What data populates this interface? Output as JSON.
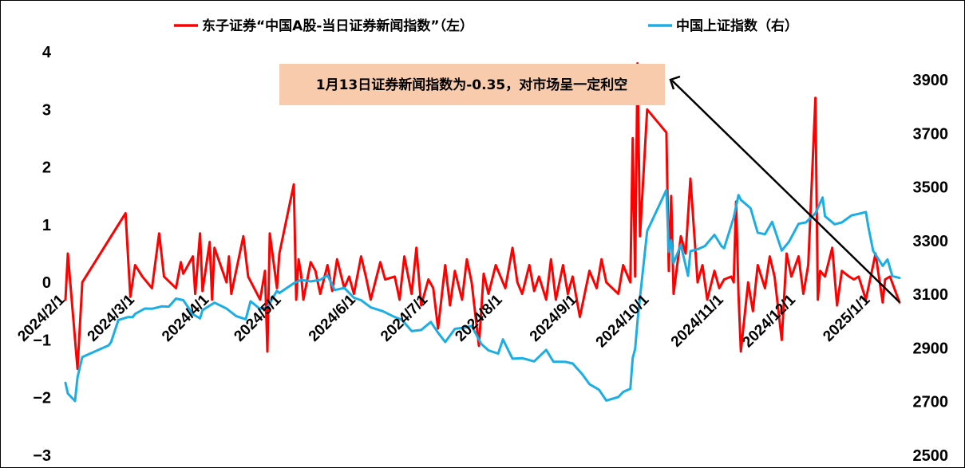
{
  "chart_data": {
    "type": "line",
    "legend_position": "top",
    "x_tick_labels": [
      "2024/2/1",
      "2024/3/1",
      "2024/4/1",
      "2024/5/1",
      "2024/6/1",
      "2024/7/1",
      "2024/8/1",
      "2024/9/1",
      "2024/10/1",
      "2024/11/1",
      "2024/12/1",
      "2025/1/1"
    ],
    "y_left": {
      "ylim": [
        -3,
        4
      ],
      "ticks": [
        "4",
        "3",
        "2",
        "1",
        "0",
        "−1",
        "−2",
        "−3"
      ]
    },
    "y_right": {
      "ylim": [
        2500,
        3900
      ],
      "ticks": [
        "3900",
        "3700",
        "3500",
        "3300",
        "3100",
        "2900",
        "2700",
        "2500"
      ]
    },
    "annotation": "1月13日证券新闻指数为-0.35，对市场呈一定利空",
    "series": [
      {
        "name": "东子证券“中国A股-当日证券新闻指数”（左）",
        "axis": "left",
        "color": "#ff0000",
        "points": [
          [
            "2024-02-01",
            -0.3
          ],
          [
            "2024-02-02",
            0.5
          ],
          [
            "2024-02-06",
            -1.5
          ],
          [
            "2024-02-08",
            0.0
          ],
          [
            "2024-02-26",
            1.2
          ],
          [
            "2024-02-28",
            -0.25
          ],
          [
            "2024-03-01",
            0.3
          ],
          [
            "2024-03-04",
            0.1
          ],
          [
            "2024-03-08",
            -0.1
          ],
          [
            "2024-03-11",
            0.85
          ],
          [
            "2024-03-13",
            0.1
          ],
          [
            "2024-03-18",
            -0.1
          ],
          [
            "2024-03-20",
            0.35
          ],
          [
            "2024-03-21",
            0.15
          ],
          [
            "2024-03-25",
            0.45
          ],
          [
            "2024-03-26",
            -0.2
          ],
          [
            "2024-03-28",
            0.85
          ],
          [
            "2024-03-29",
            -0.15
          ],
          [
            "2024-04-01",
            0.7
          ],
          [
            "2024-04-02",
            -0.3
          ],
          [
            "2024-04-03",
            0.6
          ],
          [
            "2024-04-08",
            0.0
          ],
          [
            "2024-04-09",
            0.45
          ],
          [
            "2024-04-10",
            -0.2
          ],
          [
            "2024-04-15",
            0.8
          ],
          [
            "2024-04-17",
            0.1
          ],
          [
            "2024-04-22",
            -0.3
          ],
          [
            "2024-04-24",
            0.2
          ],
          [
            "2024-04-25",
            -1.2
          ],
          [
            "2024-04-26",
            0.85
          ],
          [
            "2024-04-29",
            -0.1
          ],
          [
            "2024-04-30",
            0.5
          ],
          [
            "2024-05-06",
            1.7
          ],
          [
            "2024-05-07",
            -0.3
          ],
          [
            "2024-05-08",
            0.4
          ],
          [
            "2024-05-09",
            0.15
          ],
          [
            "2024-05-10",
            -0.3
          ],
          [
            "2024-05-13",
            0.35
          ],
          [
            "2024-05-15",
            0.2
          ],
          [
            "2024-05-17",
            -0.2
          ],
          [
            "2024-05-20",
            0.3
          ],
          [
            "2024-05-22",
            -0.15
          ],
          [
            "2024-05-24",
            0.4
          ],
          [
            "2024-05-27",
            -0.1
          ],
          [
            "2024-05-29",
            0.1
          ],
          [
            "2024-05-31",
            -0.2
          ],
          [
            "2024-06-03",
            0.45
          ],
          [
            "2024-06-05",
            0.1
          ],
          [
            "2024-06-07",
            -0.3
          ],
          [
            "2024-06-11",
            0.35
          ],
          [
            "2024-06-13",
            0.05
          ],
          [
            "2024-06-17",
            0.1
          ],
          [
            "2024-06-19",
            -0.3
          ],
          [
            "2024-06-21",
            0.45
          ],
          [
            "2024-06-24",
            -0.2
          ],
          [
            "2024-06-26",
            0.6
          ],
          [
            "2024-06-28",
            -0.4
          ],
          [
            "2024-07-01",
            0.05
          ],
          [
            "2024-07-03",
            -0.1
          ],
          [
            "2024-07-05",
            -0.8
          ],
          [
            "2024-07-08",
            0.3
          ],
          [
            "2024-07-10",
            -0.4
          ],
          [
            "2024-07-12",
            0.2
          ],
          [
            "2024-07-15",
            -0.3
          ],
          [
            "2024-07-17",
            0.4
          ],
          [
            "2024-07-19",
            0.0
          ],
          [
            "2024-07-22",
            -1.1
          ],
          [
            "2024-07-24",
            0.15
          ],
          [
            "2024-07-26",
            -0.2
          ],
          [
            "2024-07-29",
            0.3
          ],
          [
            "2024-07-31",
            0.1
          ],
          [
            "2024-08-02",
            -0.1
          ],
          [
            "2024-08-05",
            0.6
          ],
          [
            "2024-08-07",
            0.0
          ],
          [
            "2024-08-09",
            -0.2
          ],
          [
            "2024-08-12",
            0.3
          ],
          [
            "2024-08-14",
            -0.15
          ],
          [
            "2024-08-16",
            0.1
          ],
          [
            "2024-08-19",
            -0.3
          ],
          [
            "2024-08-21",
            0.4
          ],
          [
            "2024-08-23",
            -0.3
          ],
          [
            "2024-08-26",
            0.3
          ],
          [
            "2024-08-28",
            -0.2
          ],
          [
            "2024-08-30",
            0.1
          ],
          [
            "2024-09-02",
            -0.6
          ],
          [
            "2024-09-04",
            -0.2
          ],
          [
            "2024-09-06",
            0.2
          ],
          [
            "2024-09-09",
            -0.1
          ],
          [
            "2024-09-11",
            0.4
          ],
          [
            "2024-09-13",
            0.0
          ],
          [
            "2024-09-18",
            -0.2
          ],
          [
            "2024-09-20",
            0.3
          ],
          [
            "2024-09-23",
            0.0
          ],
          [
            "2024-09-24",
            2.5
          ],
          [
            "2024-09-25",
            0.1
          ],
          [
            "2024-09-26",
            3.8
          ],
          [
            "2024-09-27",
            0.8
          ],
          [
            "2024-09-30",
            3.0
          ],
          [
            "2024-10-08",
            2.6
          ],
          [
            "2024-10-09",
            0.2
          ],
          [
            "2024-10-10",
            1.5
          ],
          [
            "2024-10-11",
            -0.2
          ],
          [
            "2024-10-14",
            0.8
          ],
          [
            "2024-10-16",
            0.5
          ],
          [
            "2024-10-18",
            1.8
          ],
          [
            "2024-10-21",
            0.0
          ],
          [
            "2024-10-23",
            0.3
          ],
          [
            "2024-10-25",
            -0.3
          ],
          [
            "2024-10-28",
            0.2
          ],
          [
            "2024-10-30",
            -0.1
          ],
          [
            "2024-11-01",
            0.05
          ],
          [
            "2024-11-04",
            0.1
          ],
          [
            "2024-11-05",
            0.0
          ],
          [
            "2024-11-06",
            1.4
          ],
          [
            "2024-11-07",
            -0.2
          ],
          [
            "2024-11-08",
            -1.2
          ],
          [
            "2024-11-11",
            0.0
          ],
          [
            "2024-11-13",
            -0.5
          ],
          [
            "2024-11-15",
            0.3
          ],
          [
            "2024-11-18",
            -0.1
          ],
          [
            "2024-11-20",
            0.45
          ],
          [
            "2024-11-22",
            0.1
          ],
          [
            "2024-11-25",
            -1.0
          ],
          [
            "2024-11-27",
            0.5
          ],
          [
            "2024-11-29",
            0.1
          ],
          [
            "2024-12-02",
            0.45
          ],
          [
            "2024-12-04",
            -0.2
          ],
          [
            "2024-12-06",
            0.3
          ],
          [
            "2024-12-09",
            3.2
          ],
          [
            "2024-12-10",
            -0.3
          ],
          [
            "2024-12-11",
            0.2
          ],
          [
            "2024-12-13",
            0.1
          ],
          [
            "2024-12-16",
            0.6
          ],
          [
            "2024-12-18",
            -0.4
          ],
          [
            "2024-12-20",
            0.2
          ],
          [
            "2024-12-23",
            0.1
          ],
          [
            "2024-12-25",
            0.05
          ],
          [
            "2024-12-27",
            0.1
          ],
          [
            "2024-12-30",
            -0.3
          ],
          [
            "2025-01-02",
            0.3
          ],
          [
            "2025-01-03",
            0.5
          ],
          [
            "2025-01-06",
            -0.35
          ],
          [
            "2025-01-07",
            0.05
          ],
          [
            "2025-01-09",
            0.1
          ],
          [
            "2025-01-13",
            -0.35
          ]
        ]
      },
      {
        "name": "中国上证指数（右）",
        "axis": "right",
        "color": "#1aaee5",
        "points": [
          [
            "2024-02-01",
            2770
          ],
          [
            "2024-02-02",
            2730
          ],
          [
            "2024-02-05",
            2702
          ],
          [
            "2024-02-06",
            2790
          ],
          [
            "2024-02-07",
            2829
          ],
          [
            "2024-02-08",
            2866
          ],
          [
            "2024-02-19",
            2910
          ],
          [
            "2024-02-20",
            2922
          ],
          [
            "2024-02-23",
            3004
          ],
          [
            "2024-02-27",
            3015
          ],
          [
            "2024-02-29",
            3015
          ],
          [
            "2024-03-01",
            3027
          ],
          [
            "2024-03-05",
            3047
          ],
          [
            "2024-03-08",
            3046
          ],
          [
            "2024-03-12",
            3055
          ],
          [
            "2024-03-15",
            3054
          ],
          [
            "2024-03-18",
            3084
          ],
          [
            "2024-03-21",
            3078
          ],
          [
            "2024-03-25",
            3026
          ],
          [
            "2024-03-28",
            3010
          ],
          [
            "2024-03-29",
            3041
          ],
          [
            "2024-04-03",
            3069
          ],
          [
            "2024-04-08",
            3047
          ],
          [
            "2024-04-12",
            3019
          ],
          [
            "2024-04-16",
            3007
          ],
          [
            "2024-04-18",
            3074
          ],
          [
            "2024-04-22",
            3045
          ],
          [
            "2024-04-25",
            3052
          ],
          [
            "2024-04-29",
            3113
          ],
          [
            "2024-04-30",
            3105
          ],
          [
            "2024-05-06",
            3141
          ],
          [
            "2024-05-09",
            3154
          ],
          [
            "2024-05-13",
            3148
          ],
          [
            "2024-05-17",
            3154
          ],
          [
            "2024-05-20",
            3171
          ],
          [
            "2024-05-23",
            3116
          ],
          [
            "2024-05-27",
            3124
          ],
          [
            "2024-05-31",
            3087
          ],
          [
            "2024-06-03",
            3078
          ],
          [
            "2024-06-07",
            3051
          ],
          [
            "2024-06-12",
            3037
          ],
          [
            "2024-06-17",
            3015
          ],
          [
            "2024-06-20",
            3005
          ],
          [
            "2024-06-24",
            2963
          ],
          [
            "2024-06-28",
            2967
          ],
          [
            "2024-07-02",
            2997
          ],
          [
            "2024-07-05",
            2957
          ],
          [
            "2024-07-08",
            2922
          ],
          [
            "2024-07-12",
            2971
          ],
          [
            "2024-07-16",
            2976
          ],
          [
            "2024-07-19",
            2982
          ],
          [
            "2024-07-23",
            2915
          ],
          [
            "2024-07-26",
            2891
          ],
          [
            "2024-07-30",
            2879
          ],
          [
            "2024-08-01",
            2932
          ],
          [
            "2024-08-05",
            2860
          ],
          [
            "2024-08-09",
            2862
          ],
          [
            "2024-08-14",
            2850
          ],
          [
            "2024-08-19",
            2893
          ],
          [
            "2024-08-22",
            2849
          ],
          [
            "2024-08-27",
            2848
          ],
          [
            "2024-08-30",
            2842
          ],
          [
            "2024-09-03",
            2802
          ],
          [
            "2024-09-06",
            2765
          ],
          [
            "2024-09-10",
            2744
          ],
          [
            "2024-09-13",
            2704
          ],
          [
            "2024-09-18",
            2717
          ],
          [
            "2024-09-20",
            2736
          ],
          [
            "2024-09-23",
            2748
          ],
          [
            "2024-09-24",
            2863
          ],
          [
            "2024-09-25",
            2896
          ],
          [
            "2024-09-26",
            3000
          ],
          [
            "2024-09-27",
            3087
          ],
          [
            "2024-09-30",
            3336
          ],
          [
            "2024-10-08",
            3489
          ],
          [
            "2024-10-09",
            3258
          ],
          [
            "2024-10-10",
            3301
          ],
          [
            "2024-10-11",
            3217
          ],
          [
            "2024-10-14",
            3284
          ],
          [
            "2024-10-17",
            3169
          ],
          [
            "2024-10-18",
            3261
          ],
          [
            "2024-10-21",
            3268
          ],
          [
            "2024-10-24",
            3280
          ],
          [
            "2024-10-28",
            3322
          ],
          [
            "2024-10-31",
            3279
          ],
          [
            "2024-11-01",
            3272
          ],
          [
            "2024-11-05",
            3386
          ],
          [
            "2024-11-07",
            3470
          ],
          [
            "2024-11-08",
            3452
          ],
          [
            "2024-11-12",
            3421
          ],
          [
            "2024-11-15",
            3330
          ],
          [
            "2024-11-18",
            3324
          ],
          [
            "2024-11-21",
            3370
          ],
          [
            "2024-11-25",
            3263
          ],
          [
            "2024-11-28",
            3296
          ],
          [
            "2024-12-02",
            3363
          ],
          [
            "2024-12-05",
            3368
          ],
          [
            "2024-12-09",
            3402
          ],
          [
            "2024-12-10",
            3422
          ],
          [
            "2024-12-12",
            3461
          ],
          [
            "2024-12-13",
            3391
          ],
          [
            "2024-12-17",
            3361
          ],
          [
            "2024-12-20",
            3368
          ],
          [
            "2024-12-24",
            3394
          ],
          [
            "2024-12-27",
            3400
          ],
          [
            "2024-12-30",
            3407
          ],
          [
            "2024-12-31",
            3352
          ],
          [
            "2025-01-02",
            3262
          ],
          [
            "2025-01-06",
            3206
          ],
          [
            "2025-01-08",
            3230
          ],
          [
            "2025-01-10",
            3168
          ],
          [
            "2025-01-13",
            3161
          ]
        ]
      }
    ]
  }
}
